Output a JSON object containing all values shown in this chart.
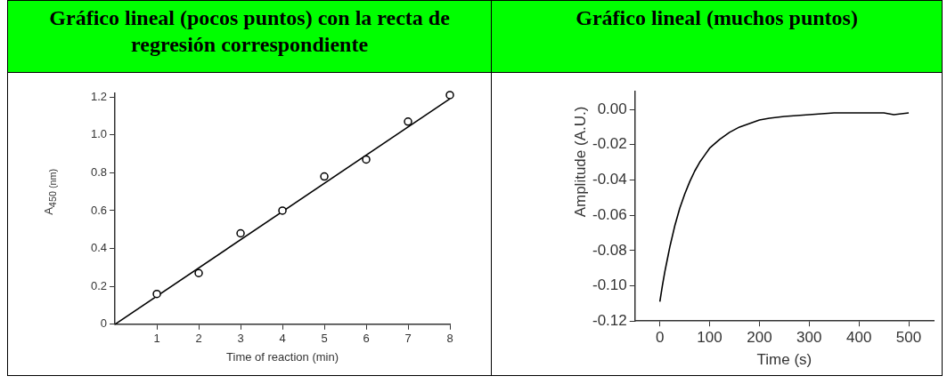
{
  "chart_data": [
    {
      "type": "scatter",
      "title": "Gráfico lineal (pocos puntos) con la recta de regresión correspondiente",
      "xlabel": "Time of reaction (min)",
      "ylabel": "A$_{450 (nm)}$",
      "marker": "circle",
      "grid": false,
      "xlim": [
        0,
        8
      ],
      "xticks": [
        1,
        2,
        3,
        4,
        5,
        6,
        7,
        8
      ],
      "ylim": [
        0,
        1.22
      ],
      "yticks": [
        0,
        {
          "value": 0.2,
          "label": "0.2"
        },
        {
          "value": 0.4,
          "label": "0.4"
        },
        {
          "value": 0.6,
          "label": "0.6"
        },
        {
          "value": 0.8,
          "label": "0.8"
        },
        {
          "value": 1,
          "label": "1.0"
        },
        {
          "value": 1.2,
          "label": "1.2"
        }
      ],
      "series": [
        {
          "color": "#000000",
          "x": [
            1,
            2,
            3,
            4,
            5,
            6,
            7,
            8
          ],
          "values": [
            0.16,
            0.27,
            0.48,
            0.6,
            0.78,
            0.87,
            1.07,
            1.21
          ]
        },
        {
          "type": "line",
          "color": "#000000",
          "marker": "none",
          "x": [
            0,
            8
          ],
          "values": [
            0,
            1.19
          ]
        }
      ]
    },
    {
      "type": "line",
      "title": "Gráfico lineal (muchos puntos)",
      "xlabel": "Time (s)",
      "ylabel": "Amplitude (A.U.)",
      "marker": "none",
      "grid": false,
      "xlim": [
        -50,
        550
      ],
      "xticks": [
        0,
        100,
        200,
        300,
        400,
        500
      ],
      "ylim": [
        -0.12,
        0.01
      ],
      "yticks": [
        {
          "value": -0.12,
          "label": "-0.12"
        },
        {
          "value": -0.1,
          "label": "-0.10"
        },
        {
          "value": -0.08,
          "label": "-0.08"
        },
        {
          "value": -0.06,
          "label": "-0.06"
        },
        {
          "value": -0.04,
          "label": "-0.04"
        },
        {
          "value": -0.02,
          "label": "-0.02"
        },
        {
          "value": 0,
          "label": "0.00"
        }
      ],
      "series": [
        {
          "color": "#000000",
          "x": [
            0,
            5,
            10,
            15,
            20,
            30,
            40,
            50,
            60,
            70,
            80,
            90,
            100,
            120,
            140,
            160,
            180,
            200,
            220,
            250,
            300,
            350,
            400,
            450,
            470,
            500
          ],
          "values": [
            -0.109,
            -0.1,
            -0.092,
            -0.085,
            -0.078,
            -0.066,
            -0.056,
            -0.048,
            -0.041,
            -0.035,
            -0.03,
            -0.026,
            -0.022,
            -0.017,
            -0.013,
            -0.01,
            -0.008,
            -0.006,
            -0.005,
            -0.004,
            -0.003,
            -0.002,
            -0.002,
            -0.002,
            -0.003,
            -0.002
          ]
        }
      ]
    }
  ]
}
